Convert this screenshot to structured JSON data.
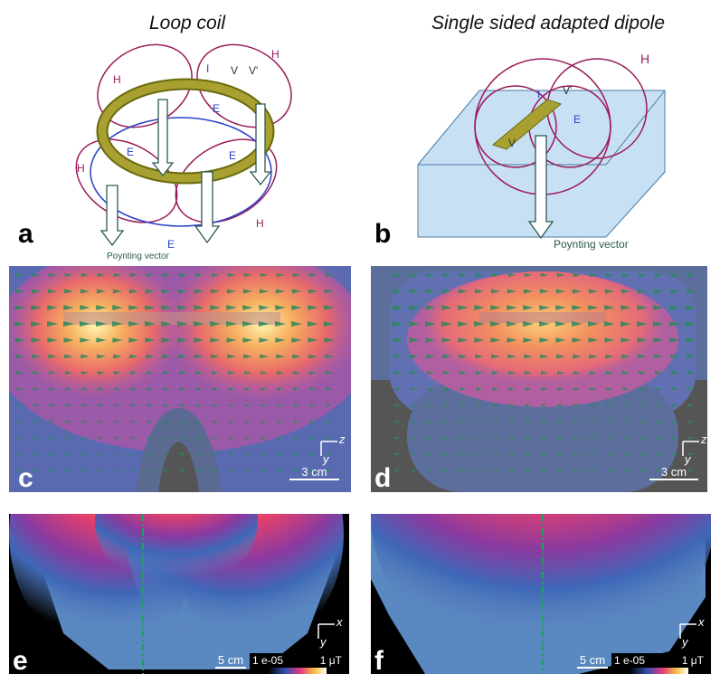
{
  "columns": {
    "left": {
      "title": "Loop coil"
    },
    "right": {
      "title": "Single sided adapted dipole"
    }
  },
  "panels": {
    "a": {
      "label": "a",
      "field_labels": [
        "H",
        "I",
        "V",
        "V'",
        "H",
        "E",
        "E",
        "E",
        "H",
        "E",
        "H"
      ],
      "caption": "Poynting vector"
    },
    "b": {
      "label": "b",
      "field_labels": [
        "H",
        "I",
        "V'",
        "E",
        "V"
      ],
      "caption": "Poynting vector"
    },
    "c": {
      "label": "c",
      "axes": [
        "z",
        "y"
      ],
      "scale": "3 cm"
    },
    "d": {
      "label": "d",
      "axes": [
        "z",
        "y"
      ],
      "scale": "3 cm"
    },
    "e": {
      "label": "e",
      "axes": [
        "x",
        "y"
      ],
      "scale": "5 cm",
      "colorbar": [
        "1 e-05",
        "1 μT"
      ]
    },
    "f": {
      "label": "f",
      "axes": [
        "x",
        "y"
      ],
      "scale": "5 cm",
      "colorbar": [
        "1 e-05",
        "1 μT"
      ]
    }
  }
}
